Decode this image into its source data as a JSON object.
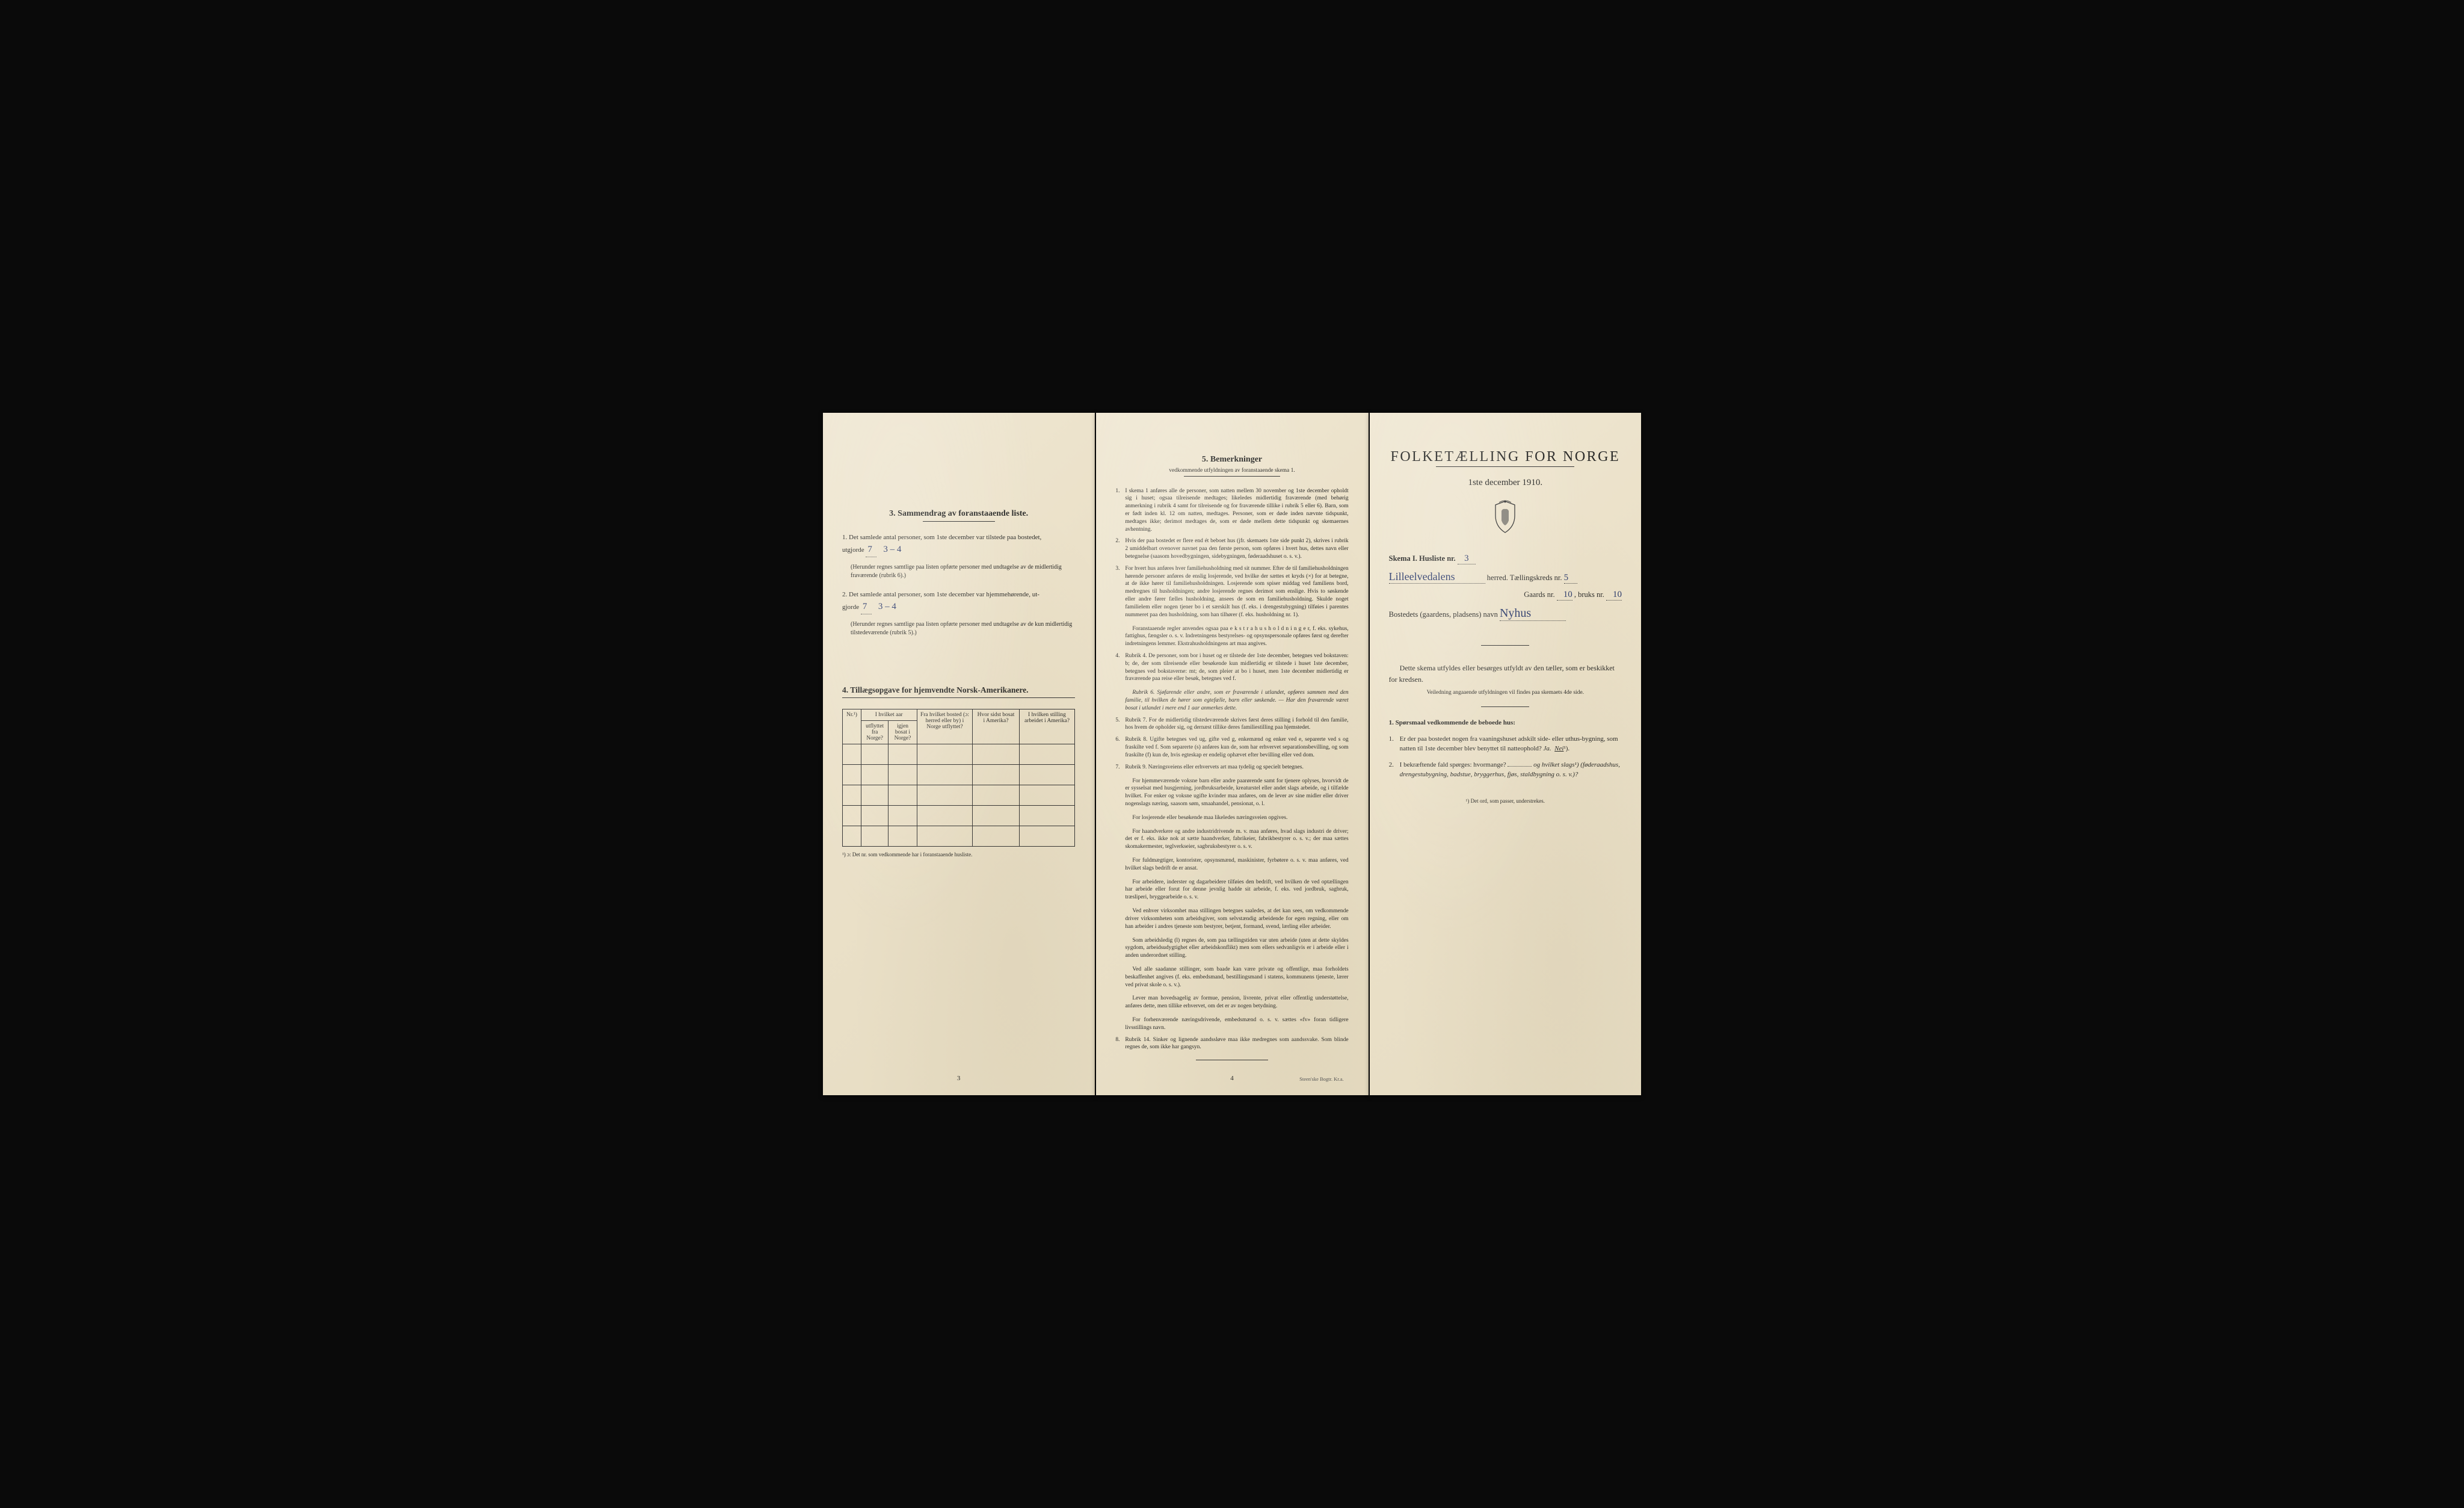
{
  "document": {
    "language": "no",
    "background_color": "#ece3cc",
    "ink_color": "#2a2a28",
    "handwriting_color": "#2b3a6b"
  },
  "left": {
    "section3_title": "3.   Sammendrag av foranstaaende liste.",
    "q1_prefix": "1.  Det samlede antal personer, som 1ste december var tilstede paa bostedet,",
    "utgjorde": "utgjorde",
    "q1_value": "7",
    "q1_extra": "3 – 4",
    "q1_note": "(Herunder regnes samtlige paa listen opførte personer med undtagelse av de midlertidig fraværende (rubrik 6).)",
    "q2_prefix": "2.  Det samlede antal personer, som 1ste december var hjemmehørende, ut-",
    "q2_label": "gjorde",
    "q2_value": "7",
    "q2_extra": "3 – 4",
    "q2_note": "(Herunder regnes samtlige paa listen opførte personer med undtagelse av de kun midlertidig tilstedeværende (rubrik 5).)",
    "section4_title": "4.  Tillægsopgave for hjemvendte Norsk-Amerikanere.",
    "table": {
      "columns": [
        "Nr.¹)",
        "I hvilket aar utflyttet fra Norge?",
        "Fra hvilket bosted (ɔ: herred eller by) i Norge utflyttet?",
        "Hvor sidst bosat i Amerika?",
        "I hvilken stilling arbeidet i Amerika?"
      ],
      "col_sub": [
        "",
        "igjen bosat i Norge?",
        "",
        "",
        ""
      ],
      "empty_rows": 5
    },
    "table_footnote": "¹) ɔ: Det nr. som vedkommende har i foranstaaende husliste.",
    "page_number": "3"
  },
  "middle": {
    "section5_title": "5.   Bemerkninger",
    "section5_sub": "vedkommende utfyldningen av foranstaaende skema 1.",
    "items": [
      "I skema 1 anføres alle de personer, som natten mellem 30 november og 1ste december opholdt sig i huset; ogsaa tilreisende medtages; likeledes midlertidig fraværende (med behørig anmerkning i rubrik 4 samt for tilreisende og for fraværende tillike i rubrik 5 eller 6). Barn, som er født inden kl. 12 om natten, medtages. Personer, som er døde inden nævnte tidspunkt, medtages ikke; derimot medtages de, som er døde mellem dette tidspunkt og skemaernes avhentning.",
      "Hvis der paa bostedet er flere end ét beboet hus (jfr. skemaets 1ste side punkt 2), skrives i rubrik 2 umiddelbart ovenover navnet paa den første person, som opføres i hvert hus, dettes navn eller betegnelse (saasom hovedbygningen, sidebygningen, føderaadshuset o. s. v.).",
      "For hvert hus anføres hver familiehusholdning med sit nummer. Efter de til familiehusholdningen hørende personer anføres de enslig losjerende, ved hvilke der sættes et kryds (×) for at betegne, at de ikke hører til familiehusholdningen. Losjerende som spiser middag ved familiens bord, medregnes til husholdningen; andre losjerende regnes derimot som enslige. Hvis to søskende eller andre fører fælles husholdning, ansees de som en familiehusholdning. Skulde noget familielem eller nogen tjener bo i et særskilt hus (f. eks. i drengestubygning) tilføies i parentes nummeret paa den husholdning, som han tilhører (f. eks. husholdning nr. 1).",
      "Rubrik 4.  De personer, som bor i huset og er tilstede der 1ste december, betegnes ved bokstaven: b; de, der som tilreisende eller besøkende kun midlertidig er tilstede i huset 1ste december, betegnes ved bokstaverne: mt; de, som pleier at bo i huset, men 1ste december midlertidig er fraværende paa reise eller besøk, betegnes ved f.",
      "Rubrik 7.  For de midlertidig tilstedeværende skrives først deres stilling i forhold til den familie, hos hvem de opholder sig, og dernæst tillike deres familiestilling paa hjemstedet.",
      "Rubrik 8.  Ugifte betegnes ved ug, gifte ved g, enkemænd og enker ved e, separerte ved s og fraskilte ved f. Som separerte (s) anføres kun de, som har erhvervet separationsbevilling, og som fraskilte (f) kun de, hvis egteskap er endelig ophævet efter bevilling eller ved dom.",
      "Rubrik 9.  Næringsveiens eller erhvervets art maa tydelig og specielt betegnes.",
      "Rubrik 14.  Sinker og lignende aandssløve maa ikke medregnes som aandssvake. Som blinde regnes de, som ikke har gangsyn."
    ],
    "item3_extra": "Foranstaaende regler anvendes ogsaa paa e k s t r a h u s h o l d n i n g e r, f. eks. sykehus, fattighus, fængsler o. s. v. Indretningens bestyrelses- og opsynspersonale opføres først og derefter indretningens lemmer. Ekstrahusholdningens art maa angives.",
    "item4_extra": "Rubrik 6.  Sjøfarende eller andre, som er fraværende i utlandet, opføres sammen med den familie, til hvilken de hører som egtefælle, barn eller søskende. — Har den fraværende været bosat i utlandet i mere end 1 aar anmerkes dette.",
    "item7_paras": [
      "For hjemmeværende voksne barn eller andre paarørende samt for tjenere oplyses, hvorvidt de er sysselsat med husgjerning, jordbruksarbeide, kreaturstel eller andet slags arbeide, og i tilfælde hvilket. For enker og voksne ugifte kvinder maa anføres, om de lever av sine midler eller driver nogenslags næring, saasom søm, smaahandel, pensionat, o. l.",
      "For losjerende eller besøkende maa likeledes næringsveien opgives.",
      "For haandverkere og andre industridrivende m. v. maa anføres, hvad slags industri de driver; det er f. eks. ikke nok at sætte haandverker, fabrikeier, fabrikbestyrer o. s. v.; der maa sættes skomakermester, teglverkseier, sagbruksbestyrer o. s. v.",
      "For fuldmægtiger, kontorister, opsynsmænd, maskinister, fyrbøtere o. s. v. maa anføres, ved hvilket slags bedrift de er ansat.",
      "For arbeidere, inderster og dagarbeidere tilføies den bedrift, ved hvilken de ved optællingen har arbeide eller forut for denne jevnlig hadde sit arbeide, f. eks. ved jordbruk, sagbruk, træsliperi, bryggearbeide o. s. v.",
      "Ved enhver virksomhet maa stillingen betegnes saaledes, at det kan sees, om vedkommende driver virksomheten som arbeidsgiver, som selvstændig arbeidende for egen regning, eller om han arbeider i andres tjeneste som bestyrer, betjent, formand, svend, lærling eller arbeider.",
      "Som arbeidsledig (l) regnes de, som paa tællingstiden var uten arbeide (uten at dette skyldes sygdom, arbeidsudygtighet eller arbeidskonflikt) men som ellers sedvanligvis er i arbeide eller i anden underordnet stilling.",
      "Ved alle saadanne stillinger, som baade kan være private og offentlige, maa forholdets beskaffenhet angives (f. eks. embedsmand, bestillingsmand i statens, kommunens tjeneste, lærer ved privat skole o. s. v.).",
      "Lever man hovedsagelig av formue, pension, livrente, privat eller offentlig understøttelse, anføres dette, men tillike erhvervet, om det er av nogen betydning.",
      "For forhenværende næringsdrivende, embedsmænd o. s. v. sættes «fv» foran tidligere livsstillings navn."
    ],
    "page_number": "4",
    "printer_credit": "Steen'ske Bogtr.   Kr.a."
  },
  "right": {
    "main_title": "FOLKETÆLLING FOR NORGE",
    "sub_title": "1ste december 1910.",
    "skema_line_a": "Skema I.   Husliste nr.",
    "husliste_nr": "3",
    "herred_value": "Lilleelvedalens",
    "herred_label": "herred.   Tællingskreds nr.",
    "kreds_nr": "5",
    "gaards_label": "Gaards nr.",
    "gaards_nr": "10",
    "bruks_label": ", bruks nr.",
    "bruks_nr": "10",
    "bosted_label": "Bostedets (gaardens, pladsens) navn",
    "bosted_value": "Nyhus",
    "lead": "Dette skema utfyldes eller besørges utfyldt av den tæller, som er beskikket for kredsen.",
    "lead_sub": "Veiledning angaaende utfyldningen vil findes paa skemaets 4de side.",
    "q_title": "1.  Spørsmaal vedkommende de beboede hus:",
    "q1": "Er der paa bostedet nogen fra vaaningshuset adskilt side- eller uthus-bygning, som natten til 1ste december blev benyttet til natteophold?  ",
    "q1_ja": "Ja.",
    "q1_nei": "Nei",
    "q1_sup": "¹).",
    "q2": "I bekræftende fald spørges: hvormange?",
    "q2_og": "og hvilket slags¹) (føderaadshus, drengestubygning, badstue, bryggerhus, fjøs, staldbygning o. s. v.)?",
    "footnote": "¹) Det ord, som passer, understrekes."
  }
}
